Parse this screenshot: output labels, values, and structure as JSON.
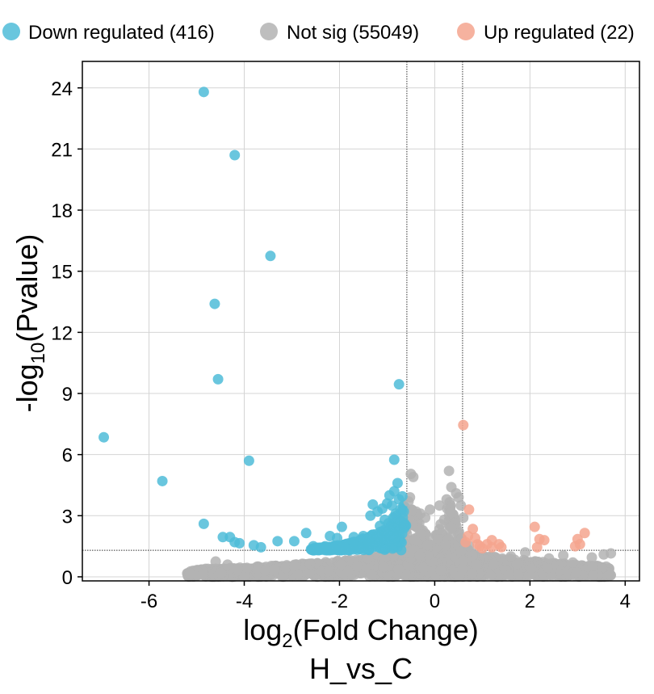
{
  "chart_data": {
    "type": "scatter",
    "title": "H_vs_C",
    "xlabel": {
      "base": "log",
      "sub": "2",
      "rest": "(Fold Change)"
    },
    "ylabel": {
      "base": "-log",
      "sub": "10",
      "rest": "(Pvalue)"
    },
    "xlim": [
      -7.4,
      4.3
    ],
    "ylim": [
      -0.2,
      25.3
    ],
    "xticks": [
      -6,
      -4,
      -2,
      0,
      2,
      4
    ],
    "yticks": [
      0,
      3,
      6,
      9,
      12,
      15,
      18,
      21,
      24
    ],
    "xtick_labels": [
      "-6",
      "-4",
      "-2",
      "0",
      "2",
      "4"
    ],
    "ytick_labels": [
      "0",
      "3",
      "6",
      "9",
      "12",
      "15",
      "18",
      "21",
      "24"
    ],
    "thresholds": {
      "log2fc": [
        -0.585,
        0.585
      ],
      "neg_log10_p": 1.3
    },
    "legend": [
      {
        "label": "Down regulated (416)",
        "color": "#4fbcd8"
      },
      {
        "label": "Not sig (55049)",
        "color": "#b3b3b3"
      },
      {
        "label": "Up regulated (22)",
        "color": "#f4a48e"
      }
    ],
    "series": [
      {
        "name": "Down regulated",
        "color": "#4fbcd8",
        "points": [
          [
            -4.85,
            23.8
          ],
          [
            -4.2,
            20.7
          ],
          [
            -3.45,
            15.75
          ],
          [
            -4.62,
            13.4
          ],
          [
            -4.55,
            9.7
          ],
          [
            -0.75,
            9.45
          ],
          [
            -6.95,
            6.85
          ],
          [
            -5.72,
            4.7
          ],
          [
            -3.9,
            5.7
          ],
          [
            -0.85,
            5.75
          ],
          [
            -4.85,
            2.6
          ],
          [
            -4.45,
            1.95
          ],
          [
            -4.3,
            1.95
          ],
          [
            -4.1,
            1.65
          ],
          [
            -4.2,
            1.7
          ],
          [
            -3.8,
            1.55
          ],
          [
            -3.65,
            1.45
          ],
          [
            -3.3,
            1.75
          ],
          [
            -2.95,
            1.75
          ],
          [
            -2.7,
            2.15
          ],
          [
            -2.55,
            1.5
          ],
          [
            -2.3,
            1.5
          ],
          [
            -2.2,
            2.0
          ],
          [
            -2.05,
            1.9
          ],
          [
            -1.95,
            2.45
          ],
          [
            -1.7,
            1.95
          ],
          [
            -1.5,
            2.0
          ],
          [
            -1.35,
            3.0
          ],
          [
            -1.3,
            3.55
          ],
          [
            -1.2,
            3.2
          ],
          [
            -1.15,
            2.5
          ],
          [
            -1.1,
            3.35
          ],
          [
            -1.05,
            2.8
          ],
          [
            -1.0,
            3.6
          ],
          [
            -0.95,
            4.0
          ],
          [
            -0.9,
            3.5
          ],
          [
            -0.85,
            4.2
          ],
          [
            -0.82,
            3.1
          ],
          [
            -0.78,
            4.6
          ],
          [
            -0.75,
            3.8
          ],
          [
            -0.72,
            3.3
          ],
          [
            -0.7,
            2.7
          ],
          [
            -0.68,
            3.95
          ],
          [
            -0.65,
            3.2
          ],
          [
            -0.62,
            2.5
          ]
        ]
      },
      {
        "name": "Up regulated",
        "color": "#f4a48e",
        "points": [
          [
            0.6,
            7.45
          ],
          [
            0.72,
            3.3
          ],
          [
            0.8,
            2.35
          ],
          [
            0.7,
            2.0
          ],
          [
            0.9,
            1.6
          ],
          [
            1.2,
            1.8
          ],
          [
            1.35,
            1.6
          ],
          [
            1.2,
            1.45
          ],
          [
            2.1,
            2.45
          ],
          [
            2.2,
            1.85
          ],
          [
            2.3,
            1.8
          ],
          [
            3.0,
            1.85
          ],
          [
            3.15,
            2.15
          ],
          [
            2.95,
            1.5
          ],
          [
            1.0,
            1.4
          ],
          [
            0.65,
            1.7
          ],
          [
            0.85,
            1.9
          ],
          [
            1.4,
            1.45
          ],
          [
            0.95,
            1.5
          ],
          [
            1.1,
            1.6
          ],
          [
            2.15,
            1.45
          ],
          [
            3.05,
            1.6
          ]
        ]
      },
      {
        "name": "Not sig",
        "color": "#b3b3b3",
        "points": [
          [
            -4.6,
            0.75
          ],
          [
            -4.35,
            0.6
          ],
          [
            -0.5,
            5.05
          ],
          [
            -0.45,
            4.9
          ],
          [
            0.3,
            5.2
          ],
          [
            0.35,
            4.4
          ],
          [
            0.45,
            4.1
          ],
          [
            0.5,
            3.9
          ],
          [
            0.55,
            3.5
          ],
          [
            0.6,
            2.9
          ],
          [
            3.55,
            1.1
          ],
          [
            3.7,
            1.15
          ],
          [
            3.3,
            0.95
          ],
          [
            2.4,
            0.9
          ],
          [
            2.7,
            1.05
          ],
          [
            1.6,
            1.0
          ],
          [
            1.9,
            1.2
          ],
          [
            2.9,
            0.7
          ],
          [
            -0.3,
            3.1
          ],
          [
            -0.2,
            2.9
          ],
          [
            0.2,
            2.8
          ],
          [
            -0.1,
            3.3
          ],
          [
            0.1,
            3.5
          ],
          [
            0.25,
            3.8
          ],
          [
            -0.55,
            3.7
          ],
          [
            -0.52,
            3.9
          ],
          [
            -0.48,
            3.3
          ]
        ]
      }
    ]
  }
}
